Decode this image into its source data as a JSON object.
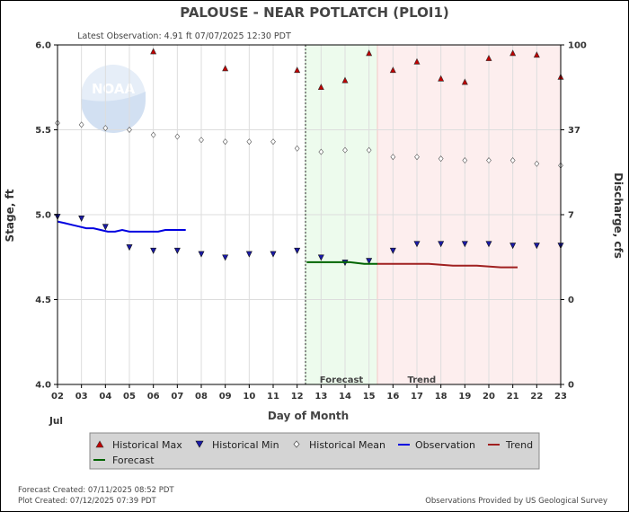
{
  "chart_data": {
    "type": "scatter",
    "title": "PALOUSE - NEAR POTLATCH  (PLOI1)",
    "subtitle": "Latest Observation: 4.91 ft 07/07/2025 12:30 PDT",
    "xlabel": "Day of Month",
    "month_label": "Jul",
    "ylabel_left": "Stage, ft",
    "ylabel_right": "Discharge, cfs",
    "x_ticks": [
      "02",
      "03",
      "04",
      "05",
      "06",
      "07",
      "08",
      "09",
      "10",
      "11",
      "12",
      "13",
      "14",
      "15",
      "16",
      "17",
      "18",
      "19",
      "20",
      "21",
      "22",
      "23"
    ],
    "x_range": [
      2,
      23
    ],
    "ylim": [
      4.0,
      6.0
    ],
    "y_ticks_left": [
      "4.0",
      "4.5",
      "5.0",
      "5.5",
      "6.0"
    ],
    "y_ticks_right": [
      {
        "stage": 4.0,
        "label": "0"
      },
      {
        "stage": 4.5,
        "label": "0"
      },
      {
        "stage": 5.0,
        "label": "7"
      },
      {
        "stage": 5.5,
        "label": "37"
      },
      {
        "stage": 6.0,
        "label": "100"
      }
    ],
    "regions": [
      {
        "label": "Forecast",
        "from": 12.35,
        "to": 15.35,
        "fill": "#edfbed",
        "stroke": "#c8eac8"
      },
      {
        "label": "Trend",
        "from": 15.35,
        "to": 23.0,
        "fill": "#fdeeee",
        "stroke": "#f2c8c8"
      }
    ],
    "now_marker_x": 12.35,
    "series": [
      {
        "name": "Historical Max",
        "marker": "triangle-up",
        "color": "#c00000",
        "x": [
          6,
          9,
          12,
          13,
          14,
          15,
          16,
          17,
          18,
          19,
          20,
          21,
          22,
          23
        ],
        "y": [
          5.96,
          5.86,
          5.85,
          5.75,
          5.79,
          5.95,
          5.85,
          5.9,
          5.8,
          5.78,
          5.92,
          5.95,
          5.94,
          5.81
        ]
      },
      {
        "name": "Historical Min",
        "marker": "triangle-down",
        "color": "#1a1aa8",
        "x": [
          2,
          3,
          4,
          5,
          6,
          7,
          8,
          9,
          10,
          11,
          12,
          13,
          14,
          15,
          16,
          17,
          18,
          19,
          20,
          21,
          22,
          23
        ],
        "y": [
          4.99,
          4.98,
          4.93,
          4.81,
          4.79,
          4.79,
          4.77,
          4.75,
          4.77,
          4.77,
          4.79,
          4.75,
          4.72,
          4.73,
          4.79,
          4.83,
          4.83,
          4.83,
          4.83,
          4.82,
          4.82,
          4.82
        ]
      },
      {
        "name": "Historical Mean",
        "marker": "diamond",
        "color": "#555555",
        "x": [
          2,
          3,
          4,
          5,
          6,
          7,
          8,
          9,
          10,
          11,
          12,
          13,
          14,
          15,
          16,
          17,
          18,
          19,
          20,
          21,
          22,
          23
        ],
        "y": [
          5.54,
          5.53,
          5.51,
          5.5,
          5.47,
          5.46,
          5.44,
          5.43,
          5.43,
          5.43,
          5.39,
          5.37,
          5.38,
          5.38,
          5.34,
          5.34,
          5.33,
          5.32,
          5.32,
          5.32,
          5.3,
          5.29
        ]
      },
      {
        "name": "Observation",
        "marker": "line",
        "color": "#0000e0",
        "x": [
          2.0,
          2.3,
          2.6,
          2.9,
          3.2,
          3.5,
          3.8,
          4.1,
          4.4,
          4.7,
          5.0,
          5.3,
          5.6,
          5.9,
          6.2,
          6.5,
          6.8,
          7.1,
          7.35
        ],
        "y": [
          4.96,
          4.95,
          4.94,
          4.93,
          4.92,
          4.92,
          4.91,
          4.9,
          4.9,
          4.91,
          4.9,
          4.9,
          4.9,
          4.9,
          4.9,
          4.91,
          4.91,
          4.91,
          4.91
        ]
      },
      {
        "name": "Forecast",
        "marker": "line",
        "color": "#006400",
        "x": [
          12.4,
          13.0,
          13.6,
          14.2,
          14.8,
          15.35
        ],
        "y": [
          4.72,
          4.72,
          4.72,
          4.72,
          4.71,
          4.71
        ]
      },
      {
        "name": "Trend",
        "marker": "line",
        "color": "#a02020",
        "x": [
          15.35,
          16.5,
          17.5,
          18.5,
          19.5,
          20.5,
          21.2
        ],
        "y": [
          4.71,
          4.71,
          4.71,
          4.7,
          4.7,
          4.69,
          4.69
        ]
      }
    ],
    "legend_position": "bottom"
  },
  "watermark": {
    "text": "NOAA"
  },
  "footer": {
    "forecast_created": "Forecast Created: 07/11/2025 08:52 PDT",
    "plot_created": "Plot Created: 07/12/2025 07:39 PDT",
    "credit": "Observations Provided by US Geological Survey"
  }
}
